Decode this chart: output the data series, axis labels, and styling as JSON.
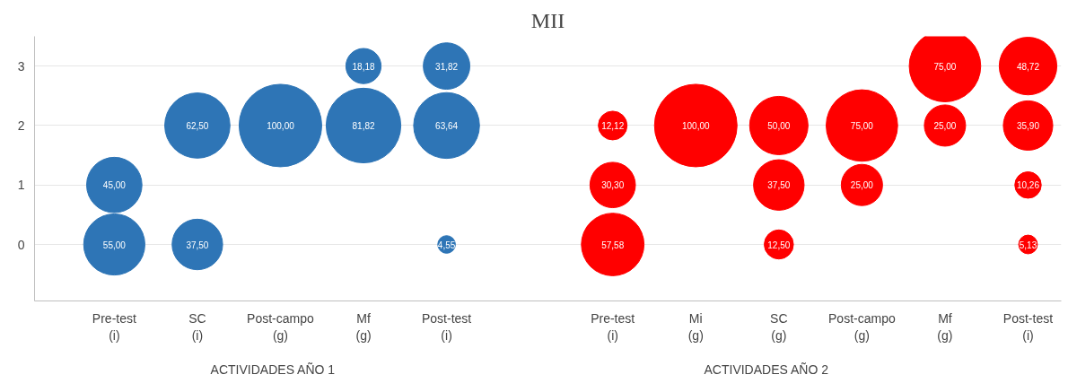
{
  "chart_data": {
    "type": "bubble",
    "title": "MII",
    "categories": [
      "Pre-test\n(i)",
      "SC\n(i)",
      "Post-campo\n(g)",
      "Mf\n(g)",
      "Post-test\n(i)",
      null,
      "Pre-test\n(i)",
      "Mi\n(g)",
      "SC\n(g)",
      "Post-campo\n(g)",
      "Mf\n(g)",
      "Post-test\n(i)"
    ],
    "ylim": [
      -0.95,
      3.5
    ],
    "yticks": [
      0,
      1,
      2,
      3
    ],
    "grid": "y",
    "marker": "circle",
    "series": [
      {
        "color": "#2e75b6",
        "values": [
          0,
          0,
          null,
          null,
          0,
          null,
          null,
          null,
          null,
          null,
          null,
          null
        ],
        "sizes": [
          55,
          37.5,
          null,
          null,
          4.55,
          null,
          null,
          null,
          null,
          null,
          null,
          null
        ],
        "value_labels": [
          "55,00",
          "37,50",
          null,
          null,
          "4,55",
          null,
          null,
          null,
          null,
          null,
          null,
          null
        ]
      },
      {
        "color": "#2e75b6",
        "values": [
          1,
          null,
          null,
          null,
          null,
          null,
          null,
          null,
          null,
          null,
          null,
          null
        ],
        "sizes": [
          45,
          null,
          null,
          null,
          null,
          null,
          null,
          null,
          null,
          null,
          null,
          null
        ],
        "value_labels": [
          "45,00",
          null,
          null,
          null,
          null,
          null,
          null,
          null,
          null,
          null,
          null,
          null
        ]
      },
      {
        "color": "#2e75b6",
        "values": [
          null,
          2,
          2,
          2,
          2,
          null,
          null,
          null,
          null,
          null,
          null,
          null
        ],
        "sizes": [
          null,
          62.5,
          100,
          81.82,
          63.64,
          null,
          null,
          null,
          null,
          null,
          null,
          null
        ],
        "value_labels": [
          null,
          "62,50",
          "100,00",
          "81,82",
          "63,64",
          null,
          null,
          null,
          null,
          null,
          null,
          null
        ]
      },
      {
        "color": "#2e75b6",
        "values": [
          null,
          null,
          null,
          3,
          3,
          null,
          null,
          null,
          null,
          null,
          null,
          null
        ],
        "sizes": [
          null,
          null,
          null,
          18.18,
          31.82,
          null,
          null,
          null,
          null,
          null,
          null,
          null
        ],
        "value_labels": [
          null,
          null,
          null,
          "18,18",
          "31,82",
          null,
          null,
          null,
          null,
          null,
          null,
          null
        ]
      },
      {
        "color": "#ff0000",
        "values": [
          null,
          null,
          null,
          null,
          null,
          null,
          0,
          null,
          0,
          null,
          null,
          0
        ],
        "sizes": [
          null,
          null,
          null,
          null,
          null,
          null,
          57.58,
          null,
          12.5,
          null,
          null,
          5.13
        ],
        "value_labels": [
          null,
          null,
          null,
          null,
          null,
          null,
          "57,58",
          null,
          "12,50",
          null,
          null,
          "5,13"
        ]
      },
      {
        "color": "#ff0000",
        "values": [
          null,
          null,
          null,
          null,
          null,
          null,
          1,
          null,
          1,
          1,
          null,
          1
        ],
        "sizes": [
          null,
          null,
          null,
          null,
          null,
          null,
          30.3,
          null,
          37.5,
          25,
          null,
          10.26
        ],
        "value_labels": [
          null,
          null,
          null,
          null,
          null,
          null,
          "30,30",
          null,
          "37,50",
          "25,00",
          null,
          "10,26"
        ]
      },
      {
        "color": "#ff0000",
        "values": [
          null,
          null,
          null,
          null,
          null,
          null,
          2,
          2,
          2,
          2,
          2,
          2
        ],
        "sizes": [
          null,
          null,
          null,
          null,
          null,
          null,
          12.12,
          100,
          50,
          75,
          25,
          35.9
        ],
        "value_labels": [
          null,
          null,
          null,
          null,
          null,
          null,
          "12,12",
          "100,00",
          "50,00",
          "75,00",
          "25,00",
          "35,90"
        ]
      },
      {
        "color": "#ff0000",
        "values": [
          null,
          null,
          null,
          null,
          null,
          null,
          null,
          null,
          null,
          null,
          3,
          3
        ],
        "sizes": [
          null,
          null,
          null,
          null,
          null,
          null,
          null,
          null,
          null,
          null,
          75,
          48.72
        ],
        "value_labels": [
          null,
          null,
          null,
          null,
          null,
          null,
          null,
          null,
          null,
          null,
          "75,00",
          "48,72"
        ]
      }
    ],
    "annotations": [
      "ACTIVIDADES AÑO 1",
      "ACTIVIDADES AÑO 2"
    ]
  }
}
